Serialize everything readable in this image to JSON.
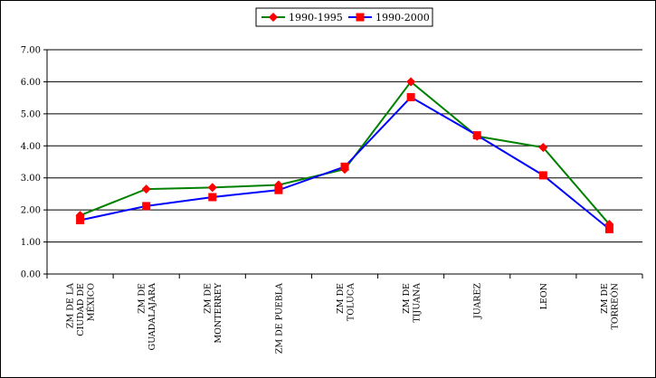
{
  "chart_data": {
    "type": "line",
    "categories": [
      [
        "ZM DE LA",
        "CIUDAD DE",
        "MÉXICO"
      ],
      [
        "ZM DE",
        "GUADALAJARA"
      ],
      [
        "ZM DE",
        "MONTERREY"
      ],
      [
        "ZM DE PUEBLA"
      ],
      [
        "ZM DE",
        "TOLUCA"
      ],
      [
        "ZM DE",
        "TIJUANA"
      ],
      [
        "JUAREZ"
      ],
      [
        "LEON"
      ],
      [
        "ZM DE",
        "TORREÓN"
      ]
    ],
    "series": [
      {
        "name": "1990-1995",
        "color": "#008000",
        "marker_color": "#ff0000",
        "marker": "diamond",
        "values": [
          1.83,
          2.65,
          2.7,
          2.78,
          3.27,
          6.0,
          4.3,
          3.95,
          1.55
        ]
      },
      {
        "name": "1990-2000",
        "color": "#0000ff",
        "marker_color": "#ff0000",
        "marker": "square",
        "values": [
          1.68,
          2.12,
          2.4,
          2.62,
          3.35,
          5.52,
          4.33,
          3.08,
          1.4
        ]
      }
    ],
    "ylim": [
      0,
      7
    ],
    "y_ticks": [
      "0.00",
      "1.00",
      "2.00",
      "3.00",
      "4.00",
      "5.00",
      "6.00",
      "7.00"
    ],
    "grid": true,
    "legend_position": "top-center",
    "title": "",
    "xlabel": "",
    "ylabel": ""
  }
}
